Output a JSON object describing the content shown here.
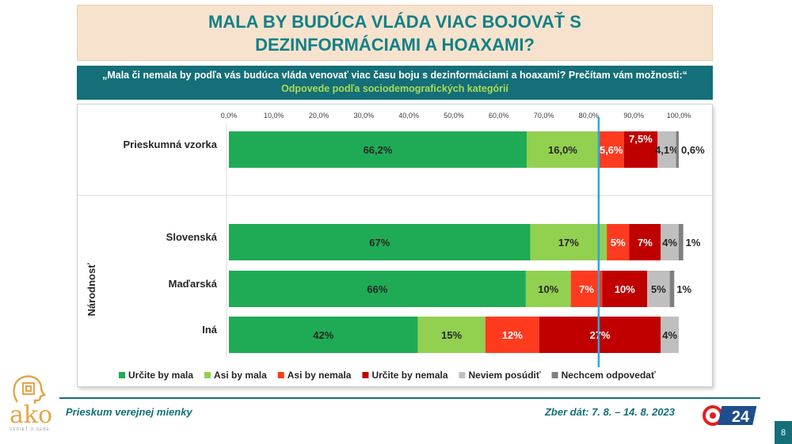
{
  "header": {
    "title": "MALA BY BUDÚCA VLÁDA VIAC BOJOVAŤ S DEZINFORMÁCIAMI A HOAXAMI?",
    "question": "„Mala či nemala by podľa vás budúca vláda venovať viac času boju s dezinformáciami a hoaxami? Prečítam vám možnosti:“",
    "subtitle": "Odpovede podľa sociodemografických kategórií"
  },
  "footer": {
    "left": "Prieskum verejnej mienky",
    "right": "Zber dát: 7. 8. – 14. 8. 2023",
    "page": "8"
  },
  "logos": {
    "ako_word": "ako",
    "ako_tag": "VEDIEŤ O SEBE",
    "brand_24": "24"
  },
  "colors": {
    "urcite_by_mala": "#1fab55",
    "asi_by_mala": "#92d050",
    "asi_by_nemala": "#ff3b1f",
    "urcite_by_nemala": "#c00000",
    "neviem": "#bfbfbf",
    "nechcem": "#7f7f7f",
    "reference_line": "#2aa7e0"
  },
  "chart_data": {
    "type": "bar",
    "orientation": "horizontal",
    "stacked": true,
    "group_label": "Národnosť",
    "categories": [
      "Prieskumná vzorka",
      "Slovenská",
      "Maďarská",
      "Iná"
    ],
    "xlim": [
      0,
      100
    ],
    "x_ticks": [
      "0,0%",
      "10,0%",
      "20,0%",
      "30,0%",
      "40,0%",
      "50,0%",
      "60,0%",
      "70,0%",
      "80,0%",
      "90,0%",
      "100,0%"
    ],
    "reference_line_x": 82.2,
    "legend_position": "bottom",
    "series": [
      {
        "name": "Určite by mala",
        "color_key": "urcite_by_mala",
        "values": [
          66.2,
          67,
          66,
          42
        ],
        "labels": [
          "66,2%",
          "67%",
          "66%",
          "42%"
        ]
      },
      {
        "name": "Asi by mala",
        "color_key": "asi_by_mala",
        "values": [
          16.0,
          17,
          10,
          15
        ],
        "labels": [
          "16,0%",
          "17%",
          "10%",
          "15%"
        ]
      },
      {
        "name": "Asi by nemala",
        "color_key": "asi_by_nemala",
        "values": [
          5.6,
          5,
          7,
          12
        ],
        "labels": [
          "5,6%",
          "5%",
          "7%",
          "12%"
        ]
      },
      {
        "name": "Určite by nemala",
        "color_key": "urcite_by_nemala",
        "values": [
          7.5,
          7,
          10,
          27
        ],
        "labels": [
          "7,5%",
          "7%",
          "10%",
          "27%"
        ]
      },
      {
        "name": "Neviem posúdiť",
        "color_key": "neviem",
        "values": [
          4.1,
          4,
          5,
          4
        ],
        "labels": [
          "4,1%",
          "4%",
          "5%",
          "4%"
        ]
      },
      {
        "name": "Nechcem odpovedať",
        "color_key": "nechcem",
        "values": [
          0.6,
          1,
          1,
          0
        ],
        "labels": [
          "0,6%",
          "1%",
          "1%",
          ""
        ]
      }
    ]
  }
}
